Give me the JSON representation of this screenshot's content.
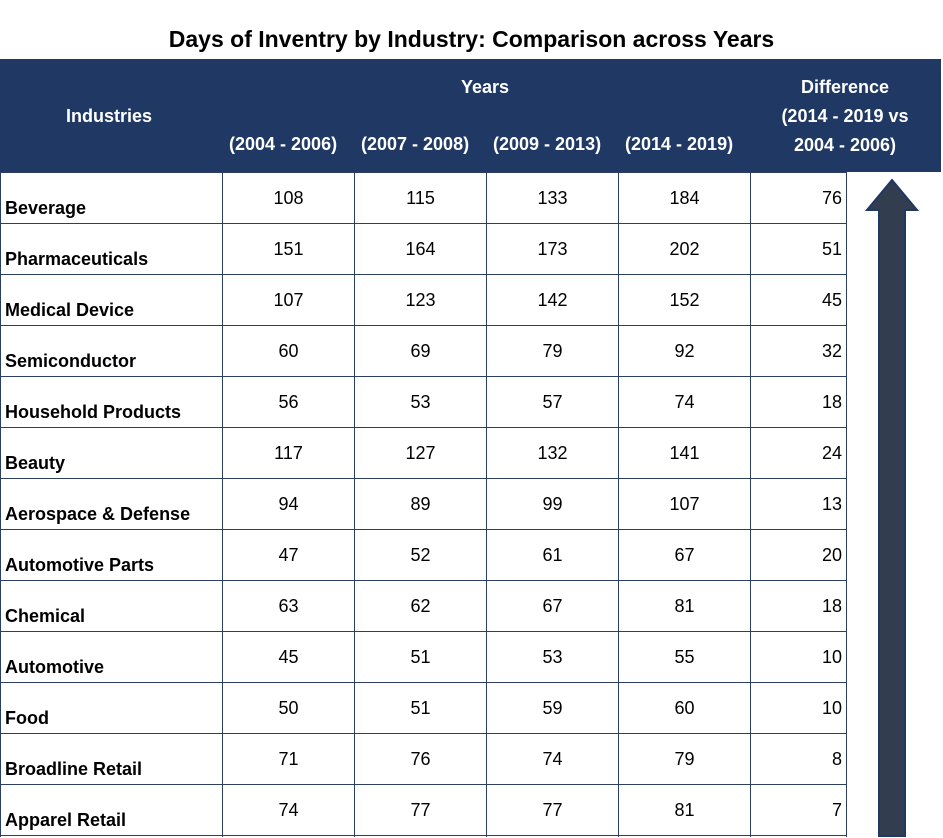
{
  "chart_data": {
    "type": "table",
    "title": "Days of Inventry by Industry: Comparison across Years",
    "row_header": "Industries",
    "group_header": "Years",
    "columns": [
      "(2004 - 2006)",
      "(2007 - 2008)",
      "(2009 - 2013)",
      "(2014 - 2019)"
    ],
    "difference_header": [
      "Difference",
      "(2014 - 2019 vs",
      "2004 - 2006)"
    ],
    "rows": [
      {
        "industry": "Beverage",
        "values": [
          108,
          115,
          133,
          184
        ],
        "difference": 76
      },
      {
        "industry": "Pharmaceuticals",
        "values": [
          151,
          164,
          173,
          202
        ],
        "difference": 51
      },
      {
        "industry": "Medical Device",
        "values": [
          107,
          123,
          142,
          152
        ],
        "difference": 45
      },
      {
        "industry": "Semiconductor",
        "values": [
          60,
          69,
          79,
          92
        ],
        "difference": 32
      },
      {
        "industry": "Household Products",
        "values": [
          56,
          53,
          57,
          74
        ],
        "difference": 18
      },
      {
        "industry": "Beauty",
        "values": [
          117,
          127,
          132,
          141
        ],
        "difference": 24
      },
      {
        "industry": "Aerospace & Defense",
        "values": [
          94,
          89,
          99,
          107
        ],
        "difference": 13
      },
      {
        "industry": "Automotive Parts",
        "values": [
          47,
          52,
          61,
          67
        ],
        "difference": 20
      },
      {
        "industry": "Chemical",
        "values": [
          63,
          62,
          67,
          81
        ],
        "difference": 18
      },
      {
        "industry": "Automotive",
        "values": [
          45,
          51,
          53,
          55
        ],
        "difference": 10
      },
      {
        "industry": "Food",
        "values": [
          50,
          51,
          59,
          60
        ],
        "difference": 10
      },
      {
        "industry": "Broadline Retail",
        "values": [
          71,
          76,
          74,
          79
        ],
        "difference": 8
      },
      {
        "industry": "Apparel Retail",
        "values": [
          74,
          77,
          77,
          81
        ],
        "difference": 7
      }
    ]
  },
  "colors": {
    "header_background": "#1f3864",
    "header_text": "#ffffff",
    "grid": "#2b3f63",
    "arrow_fill": "#323e50",
    "arrow_outline": "#1f3864"
  },
  "icons": {
    "trend_arrow": "up-arrow-icon"
  }
}
